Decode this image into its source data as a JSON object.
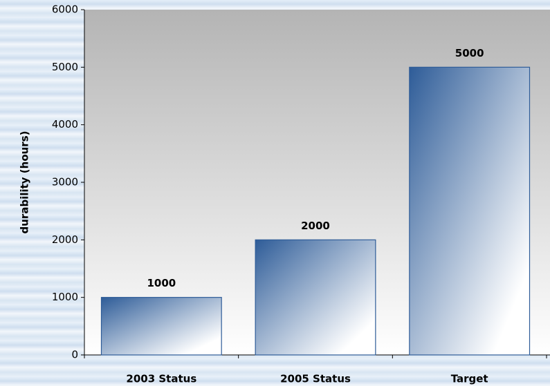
{
  "chart_data": {
    "type": "bar",
    "y_label": "durability (hours)",
    "categories": [
      "2003 Status",
      "2005 Status",
      "Target"
    ],
    "values": [
      1000,
      2000,
      5000
    ],
    "color": "#2e5c98",
    "ylim": [
      0,
      6000
    ],
    "yticks": [
      0,
      1000,
      2000,
      3000,
      4000,
      5000,
      6000
    ],
    "data_labels": true
  }
}
